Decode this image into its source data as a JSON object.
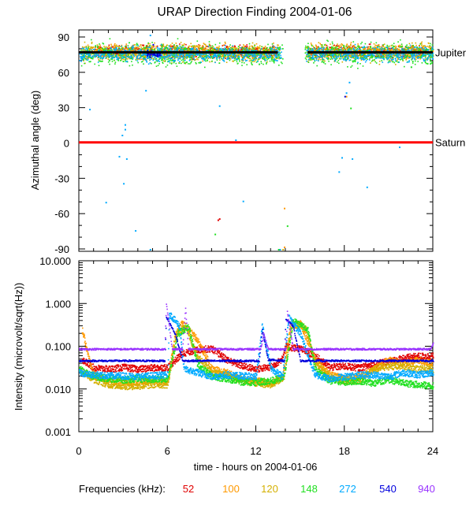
{
  "title": "URAP Direction Finding  2004-01-06",
  "xlabel": "time - hours on 2004-01-06",
  "legend_title": "Frequencies (kHz):",
  "colors": {
    "f52": "#e00000",
    "f100": "#ff9900",
    "f120": "#d4b000",
    "f148": "#22e022",
    "f272": "#00aaff",
    "f540": "#0000dd",
    "f940": "#9933ff",
    "jupiter": "#000000",
    "saturn": "#ff0000",
    "axis": "#000000"
  },
  "chart_data": [
    {
      "type": "scatter",
      "ylabel": "Azimuthal angle (deg)",
      "xlim": [
        0,
        24
      ],
      "ylim": [
        -92,
        96
      ],
      "x_ticks": [
        "0",
        "6",
        "12",
        "18",
        "24"
      ],
      "y_ticks": [
        "90",
        "60",
        "30",
        "0",
        "-30",
        "-60",
        "-90"
      ],
      "reference_lines": [
        {
          "name": "Jupiter",
          "y": 77
        },
        {
          "name": "Saturn",
          "y": 0.5
        }
      ],
      "series": [
        {
          "name": "52",
          "color_key": "f52",
          "band_center": 78,
          "band_spread": 5,
          "intervals": [
            [
              1,
              13.5
            ],
            [
              15.5,
              23.5
            ]
          ],
          "outliers": [
            [
              9.4,
              -65
            ],
            [
              9.5,
              -64
            ]
          ]
        },
        {
          "name": "100",
          "color_key": "f100",
          "band_center": 78,
          "band_spread": 6,
          "intervals": [
            [
              0.2,
              13.5
            ],
            [
              15.5,
              24
            ]
          ],
          "outliers": [
            [
              13.9,
              -55
            ],
            [
              13.9,
              -88
            ],
            [
              18.1,
              40
            ],
            [
              19.7,
              75
            ]
          ]
        },
        {
          "name": "120",
          "color_key": "f120",
          "band_center": 77,
          "band_spread": 7,
          "intervals": [
            [
              0.2,
              13.6
            ],
            [
              15.4,
              24
            ]
          ],
          "outliers": [
            [
              13.8,
              -90
            ],
            [
              18.3,
              80
            ],
            [
              19.2,
              73
            ]
          ]
        },
        {
          "name": "148",
          "color_key": "f148",
          "band_center": 76,
          "band_spread": 9,
          "intervals": [
            [
              0,
              13.8
            ],
            [
              15.3,
              24
            ]
          ],
          "outliers": [
            [
              9.2,
              -77
            ],
            [
              13.5,
              -90
            ],
            [
              14.1,
              -70
            ],
            [
              18.4,
              30
            ],
            [
              22.5,
              65
            ],
            [
              23.6,
              68
            ]
          ]
        },
        {
          "name": "272",
          "color_key": "f272",
          "band_center": 76,
          "band_spread": 6,
          "intervals": [
            [
              0,
              13.7
            ],
            [
              15.4,
              24
            ]
          ],
          "outliers": [
            [
              0.7,
              29
            ],
            [
              1.8,
              -50
            ],
            [
              2.7,
              -11
            ],
            [
              2.9,
              7
            ],
            [
              3.0,
              -34
            ],
            [
              3.1,
              16
            ],
            [
              3.1,
              12
            ],
            [
              3.2,
              -13
            ],
            [
              3.8,
              -74
            ],
            [
              4.5,
              45
            ],
            [
              4.8,
              -90
            ],
            [
              4.8,
              92
            ],
            [
              9.5,
              32
            ],
            [
              10.6,
              3
            ],
            [
              11.1,
              -49
            ],
            [
              13.6,
              -90
            ],
            [
              17.6,
              -24
            ],
            [
              17.8,
              -12
            ],
            [
              18.1,
              43
            ],
            [
              18.3,
              52
            ],
            [
              18.5,
              -13
            ],
            [
              19.5,
              -37
            ],
            [
              21.7,
              -3
            ]
          ]
        },
        {
          "name": "540",
          "color_key": "f540",
          "band_center": 76,
          "band_spread": 3,
          "intervals": [
            [
              4.6,
              5.5
            ]
          ],
          "outliers": [
            [
              5.0,
              84
            ],
            [
              18.0,
              40
            ]
          ]
        },
        {
          "name": "940",
          "color_key": "f940",
          "band_center": 76,
          "band_spread": 2,
          "intervals": [],
          "outliers": []
        }
      ]
    },
    {
      "type": "line",
      "ylabel": "Intensity (microvolt/sqrt(Hz))",
      "xlim": [
        0,
        24
      ],
      "ylim": [
        0.001,
        10
      ],
      "yscale": "log",
      "x_ticks": [
        "0",
        "6",
        "12",
        "18",
        "24"
      ],
      "y_ticks": [
        "10.000",
        "1.000",
        "0.100",
        "0.010",
        "0.001"
      ],
      "series": [
        {
          "name": "52",
          "color_key": "f52",
          "points": [
            [
              0.2,
              0.05
            ],
            [
              1,
              0.032
            ],
            [
              2,
              0.03
            ],
            [
              3,
              0.033
            ],
            [
              4,
              0.03
            ],
            [
              5,
              0.032
            ],
            [
              6,
              0.033
            ],
            [
              7,
              0.07
            ],
            [
              8,
              0.085
            ],
            [
              9,
              0.09
            ],
            [
              10,
              0.05
            ],
            [
              11,
              0.036
            ],
            [
              12,
              0.03
            ],
            [
              13,
              0.034
            ],
            [
              13.7,
              0.05
            ],
            [
              14,
              0.1
            ],
            [
              15,
              0.09
            ],
            [
              16,
              0.06
            ],
            [
              17,
              0.033
            ],
            [
              18,
              0.035
            ],
            [
              19,
              0.032
            ],
            [
              20,
              0.04
            ],
            [
              21,
              0.045
            ],
            [
              22,
              0.055
            ],
            [
              23,
              0.06
            ],
            [
              24,
              0.06
            ]
          ]
        },
        {
          "name": "100",
          "color_key": "f100",
          "points": [
            [
              0.2,
              0.25
            ],
            [
              0.6,
              0.06
            ],
            [
              1,
              0.022
            ],
            [
              2,
              0.016
            ],
            [
              3,
              0.014
            ],
            [
              4,
              0.015
            ],
            [
              5,
              0.016
            ],
            [
              6,
              0.015
            ],
            [
              6.5,
              0.2
            ],
            [
              7,
              0.35
            ],
            [
              8,
              0.15
            ],
            [
              9,
              0.03
            ],
            [
              10,
              0.025
            ],
            [
              11,
              0.017
            ],
            [
              12,
              0.016
            ],
            [
              13,
              0.014
            ],
            [
              13.8,
              0.02
            ],
            [
              14.3,
              0.3
            ],
            [
              15,
              0.35
            ],
            [
              16,
              0.05
            ],
            [
              17,
              0.022
            ],
            [
              18,
              0.018
            ],
            [
              19,
              0.02
            ],
            [
              20,
              0.03
            ],
            [
              21,
              0.05
            ],
            [
              22,
              0.04
            ],
            [
              23,
              0.05
            ],
            [
              24,
              0.04
            ]
          ]
        },
        {
          "name": "120",
          "color_key": "f120",
          "points": [
            [
              0,
              0.03
            ],
            [
              1,
              0.017
            ],
            [
              2,
              0.013
            ],
            [
              3,
              0.012
            ],
            [
              4,
              0.012
            ],
            [
              5,
              0.013
            ],
            [
              6,
              0.013
            ],
            [
              6.6,
              0.2
            ],
            [
              7.2,
              0.3
            ],
            [
              8,
              0.06
            ],
            [
              9,
              0.025
            ],
            [
              10,
              0.022
            ],
            [
              11,
              0.016
            ],
            [
              12,
              0.014
            ],
            [
              13,
              0.013
            ],
            [
              13.9,
              0.02
            ],
            [
              14.4,
              0.35
            ],
            [
              15.3,
              0.3
            ],
            [
              16,
              0.04
            ],
            [
              17,
              0.02
            ],
            [
              18,
              0.016
            ],
            [
              19,
              0.017
            ],
            [
              20,
              0.03
            ],
            [
              21,
              0.035
            ],
            [
              22,
              0.035
            ],
            [
              23,
              0.03
            ],
            [
              24,
              0.03
            ]
          ]
        },
        {
          "name": "148",
          "color_key": "f148",
          "points": [
            [
              0,
              0.03
            ],
            [
              1,
              0.02
            ],
            [
              2,
              0.018
            ],
            [
              3,
              0.017
            ],
            [
              4,
              0.018
            ],
            [
              5,
              0.017
            ],
            [
              6,
              0.018
            ],
            [
              6.7,
              0.2
            ],
            [
              7.4,
              0.3
            ],
            [
              8,
              0.04
            ],
            [
              9,
              0.02
            ],
            [
              10,
              0.018
            ],
            [
              11,
              0.015
            ],
            [
              12,
              0.015
            ],
            [
              13,
              0.016
            ],
            [
              13.9,
              0.02
            ],
            [
              14.5,
              0.4
            ],
            [
              15.5,
              0.25
            ],
            [
              16,
              0.03
            ],
            [
              17,
              0.016
            ],
            [
              18,
              0.015
            ],
            [
              19,
              0.016
            ],
            [
              20,
              0.014
            ],
            [
              21,
              0.017
            ],
            [
              22,
              0.014
            ],
            [
              23,
              0.013
            ],
            [
              24,
              0.012
            ]
          ]
        },
        {
          "name": "272",
          "color_key": "f272",
          "points": [
            [
              0,
              0.025
            ],
            [
              1,
              0.022
            ],
            [
              2,
              0.021
            ],
            [
              3,
              0.021
            ],
            [
              4,
              0.02
            ],
            [
              5,
              0.021
            ],
            [
              6,
              0.022
            ],
            [
              6.1,
              0.6
            ],
            [
              6.8,
              0.3
            ],
            [
              7.1,
              0.03
            ],
            [
              8,
              0.025
            ],
            [
              9,
              0.02
            ],
            [
              10,
              0.022
            ],
            [
              11,
              0.021
            ],
            [
              12,
              0.02
            ],
            [
              12.4,
              0.3
            ],
            [
              13,
              0.03
            ],
            [
              13.8,
              0.02
            ],
            [
              14.2,
              0.5
            ],
            [
              15,
              0.2
            ],
            [
              15.7,
              0.04
            ],
            [
              16,
              0.022
            ],
            [
              17,
              0.018
            ],
            [
              18,
              0.02
            ],
            [
              19,
              0.022
            ],
            [
              20,
              0.022
            ],
            [
              21,
              0.02
            ],
            [
              22,
              0.025
            ],
            [
              23,
              0.022
            ],
            [
              24,
              0.025
            ]
          ]
        },
        {
          "name": "540",
          "color_key": "f540",
          "points": [
            [
              0,
              0.047
            ],
            [
              5.8,
              0.047
            ],
            [
              5.9,
              0.5
            ],
            [
              6.5,
              0.2
            ],
            [
              7,
              0.047
            ],
            [
              12.2,
              0.047
            ],
            [
              12.4,
              0.25
            ],
            [
              12.8,
              0.05
            ],
            [
              13.9,
              0.047
            ],
            [
              14,
              0.45
            ],
            [
              14.5,
              0.3
            ],
            [
              15,
              0.047
            ],
            [
              24,
              0.047
            ]
          ]
        },
        {
          "name": "940",
          "color_key": "f940",
          "points": [
            [
              0,
              0.088
            ],
            [
              5.8,
              0.088
            ],
            [
              5.9,
              1.0
            ],
            [
              6.1,
              0.3
            ],
            [
              6.3,
              0.088
            ],
            [
              7,
              0.088
            ],
            [
              7.2,
              0.8
            ],
            [
              7.4,
              0.088
            ],
            [
              12.3,
              0.088
            ],
            [
              12.5,
              0.2
            ],
            [
              12.8,
              0.088
            ],
            [
              14,
              0.088
            ],
            [
              14.1,
              0.65
            ],
            [
              14.5,
              0.088
            ],
            [
              23.8,
              0.088
            ],
            [
              24,
              0.12
            ]
          ]
        }
      ]
    }
  ]
}
